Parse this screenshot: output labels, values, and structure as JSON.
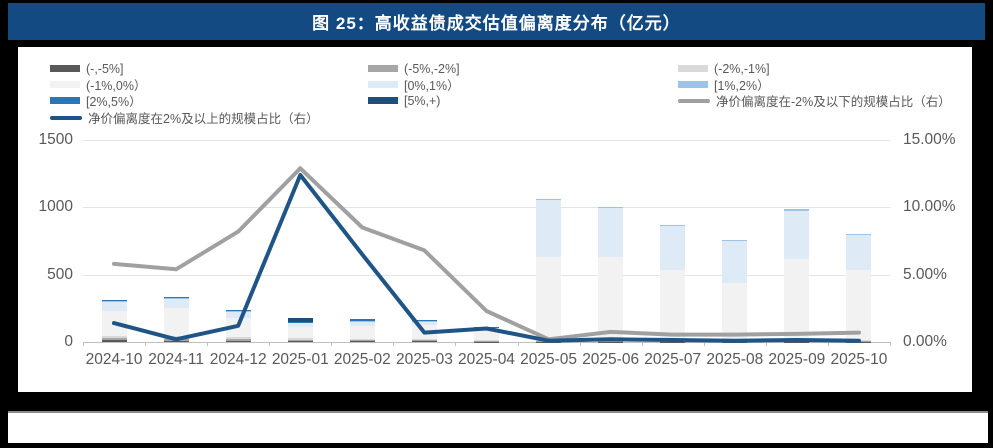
{
  "window": {
    "title": "图 25：高收益债成交估值偏离度分布（亿元）"
  },
  "colors": {
    "title_bar": "#134A81",
    "panel_bg": "#FFFFFF",
    "page_bg": "#000000",
    "tick_text": "#595959",
    "gridline": "#E4E4E4"
  },
  "chart_data": {
    "type": "combo",
    "subtype": "stacked-bar + line",
    "title": "图 25：高收益债成交估值偏离度分布（亿元）",
    "unit": "亿元",
    "legend_position": "top",
    "grid": true,
    "categories": [
      "2024-10",
      "2024-11",
      "2024-12",
      "2025-01",
      "2025-02",
      "2025-03",
      "2025-04",
      "2025-05",
      "2025-06",
      "2025-07",
      "2025-08",
      "2025-09",
      "2025-10"
    ],
    "left_axis": {
      "min": 0,
      "max": 1500,
      "tick_values": [
        0,
        500,
        1000,
        1500
      ],
      "tick_labels": [
        "0",
        "500",
        "1000",
        "1500"
      ]
    },
    "right_axis": {
      "min_pct": 0,
      "max_pct": 15,
      "tick_values_pct": [
        0,
        5,
        10,
        15
      ],
      "tick_labels": [
        "0.00%",
        "5.00%",
        "10.00%",
        "15.00%"
      ]
    },
    "bar_series": [
      {
        "name": "(-,-5%]",
        "color": "#595959",
        "values": [
          12,
          10,
          10,
          8,
          6,
          5,
          3,
          3,
          3,
          3,
          3,
          3,
          3
        ]
      },
      {
        "name": "(-5%,-2%]",
        "color": "#A6A6A6",
        "values": [
          15,
          12,
          12,
          10,
          8,
          8,
          5,
          4,
          4,
          4,
          4,
          4,
          4
        ]
      },
      {
        "name": "(-2%,-1%]",
        "color": "#D9D9D9",
        "values": [
          18,
          20,
          18,
          15,
          12,
          12,
          8,
          6,
          6,
          6,
          6,
          6,
          6
        ]
      },
      {
        "name": "(-1%,0%）",
        "color": "#F2F2F2",
        "values": [
          185,
          210,
          140,
          82,
          96,
          100,
          70,
          620,
          615,
          525,
          425,
          600,
          520
        ]
      },
      {
        "name": "[0%,1%）",
        "color": "#DEEBF7",
        "values": [
          65,
          70,
          45,
          25,
          28,
          28,
          20,
          420,
          365,
          325,
          315,
          360,
          260
        ]
      },
      {
        "name": "[1%,2%）",
        "color": "#9DC3E6",
        "values": [
          10,
          8,
          8,
          5,
          8,
          5,
          3,
          12,
          12,
          7,
          7,
          12,
          7
        ]
      },
      {
        "name": "[2%,5%）",
        "color": "#2E75B6",
        "values": [
          5,
          5,
          7,
          5,
          12,
          2,
          1,
          0,
          0,
          0,
          0,
          0,
          0
        ]
      },
      {
        "name": "[5%,+)",
        "color": "#1F4E79",
        "values": [
          0,
          0,
          0,
          25,
          0,
          0,
          0,
          0,
          0,
          0,
          0,
          0,
          0
        ]
      }
    ],
    "line_series": [
      {
        "name": "净价偏离度在2%及以上的规模占比（右）",
        "color": "#1F5586",
        "axis": "right",
        "values_pct": [
          1.4,
          0.2,
          1.2,
          12.4,
          6.5,
          0.7,
          1.0,
          0.1,
          0.2,
          0.15,
          0.1,
          0.15,
          0.1
        ]
      },
      {
        "name": "净价偏离度在-2%及以下的规模占比（右）",
        "color": "#A0A0A0",
        "axis": "right",
        "values_pct": [
          5.8,
          5.4,
          8.2,
          12.9,
          8.5,
          6.8,
          2.3,
          0.2,
          0.75,
          0.55,
          0.55,
          0.6,
          0.7
        ]
      }
    ]
  }
}
